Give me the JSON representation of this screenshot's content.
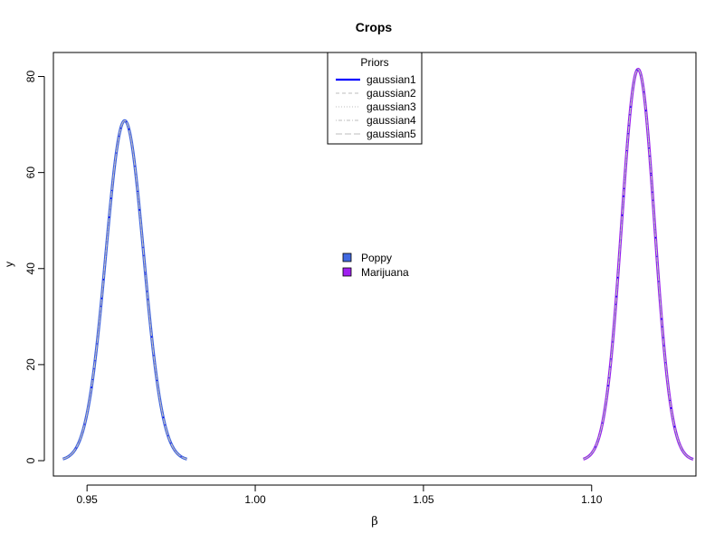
{
  "chart_data": {
    "type": "line",
    "title": "Crops",
    "xlabel": "β",
    "ylabel": "y",
    "xlim": [
      0.94,
      1.13
    ],
    "ylim": [
      0,
      85
    ],
    "xticks": [
      0.95,
      1.0,
      1.05,
      1.1
    ],
    "xtick_labels": [
      "0.95",
      "1.00",
      "1.05",
      "1.10"
    ],
    "yticks": [
      0,
      20,
      40,
      60,
      80
    ],
    "ytick_labels": [
      "0",
      "20",
      "40",
      "60",
      "80"
    ],
    "grid": false,
    "legend_priors": {
      "title": "Priors",
      "placement": "top-center",
      "entries": [
        "gaussian1",
        "gaussian2",
        "gaussian3",
        "gaussian4",
        "gaussian5"
      ]
    },
    "legend_crops": {
      "placement": "center",
      "entries": [
        {
          "label": "Poppy",
          "color": "#4169E1"
        },
        {
          "label": "Marijuana",
          "color": "#A020F0"
        }
      ]
    },
    "crops": [
      {
        "name": "Poppy",
        "color": "#4169E1",
        "mean": 0.9612,
        "peak": 70.8,
        "x_range": [
          0.9428,
          0.9797
        ],
        "series": [
          {
            "name": "gaussian1",
            "style": "solid"
          },
          {
            "name": "gaussian2",
            "style": "dashed"
          },
          {
            "name": "gaussian3",
            "style": "dotted"
          },
          {
            "name": "gaussian4",
            "style": "dotdash"
          },
          {
            "name": "gaussian5",
            "style": "longdash"
          }
        ]
      },
      {
        "name": "Marijuana",
        "color": "#A020F0",
        "mean": 1.1138,
        "peak": 81.5,
        "x_range": [
          1.0975,
          1.1302
        ],
        "series": [
          {
            "name": "gaussian1",
            "style": "solid"
          },
          {
            "name": "gaussian2",
            "style": "dashed"
          },
          {
            "name": "gaussian3",
            "style": "dotted"
          },
          {
            "name": "gaussian4",
            "style": "dotdash"
          },
          {
            "name": "gaussian5",
            "style": "longdash"
          }
        ]
      }
    ]
  },
  "colors": {
    "gaussian_line": "#0000FF",
    "prior_gray": "#BEBEBE",
    "axis": "#000000"
  }
}
